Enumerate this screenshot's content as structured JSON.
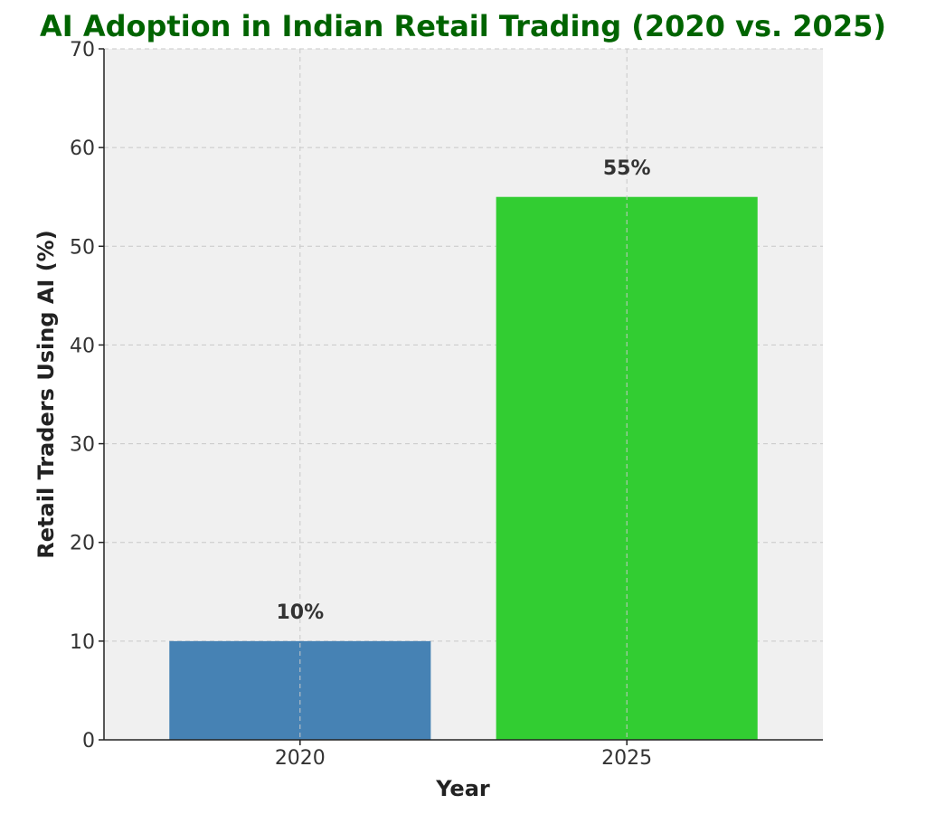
{
  "chart_data": {
    "type": "bar",
    "title": "AI Adoption in Indian Retail Trading (2020 vs. 2025)",
    "xlabel": "Year",
    "ylabel": "Retail Traders Using AI (%)",
    "categories": [
      "2020",
      "2025"
    ],
    "values": [
      10,
      55
    ],
    "data_labels": [
      "10%",
      "55%"
    ],
    "bar_colors": [
      "#4682b4",
      "#32cd32"
    ],
    "ylim": [
      0,
      70
    ],
    "yticks": [
      0,
      10,
      20,
      30,
      40,
      50,
      60,
      70
    ],
    "grid": true,
    "legend": "none"
  },
  "colors": {
    "title": "#006400",
    "plot_background": "#f0f0f0"
  }
}
